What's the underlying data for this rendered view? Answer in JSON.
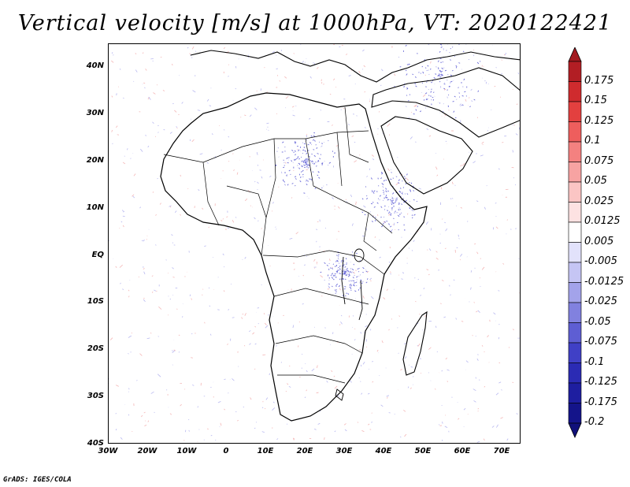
{
  "title": "Vertical velocity [m/s] at 1000hPa, VT: 2020122421",
  "credit": "GrADS: IGES/COLA",
  "lat_labels": [
    "40N",
    "30N",
    "20N",
    "10N",
    "EQ",
    "10S",
    "20S",
    "30S",
    "40S"
  ],
  "lon_labels": [
    "30W",
    "20W",
    "10W",
    "0",
    "10E",
    "20E",
    "30E",
    "40E",
    "50E",
    "60E",
    "70E"
  ],
  "colorbar": {
    "labels": [
      "0.175",
      "0.15",
      "0.125",
      "0.1",
      "0.075",
      "0.05",
      "0.025",
      "0.0125",
      "0.005",
      "-0.005",
      "-0.0125",
      "-0.025",
      "-0.05",
      "-0.075",
      "-0.1",
      "-0.125",
      "-0.175",
      "-0.2"
    ],
    "colors": [
      "#b21e24",
      "#cf2b2e",
      "#e3403f",
      "#ee5e5d",
      "#f48180",
      "#f7a3a2",
      "#fbc5c4",
      "#fde2e2",
      "#ffffff",
      "#e2e2fb",
      "#c5c5f4",
      "#a3a3ea",
      "#8181df",
      "#5e5ed3",
      "#4040c6",
      "#2b2bb4",
      "#1e1ea0",
      "#14148a"
    ],
    "top_arrow_color": "#a31a1f",
    "bottom_arrow_color": "#10107a"
  }
}
